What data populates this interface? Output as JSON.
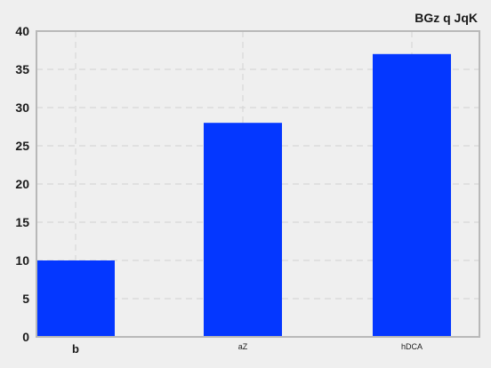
{
  "chart_data": {
    "type": "bar",
    "title": "BGz q JqK",
    "xlabel": "",
    "ylabel": "",
    "categories": [
      "b",
      "aZ",
      "hDCA"
    ],
    "values": [
      10,
      28,
      37
    ],
    "ylim": [
      0,
      40
    ],
    "yticks": [
      0,
      5,
      10,
      15,
      20,
      25,
      30,
      35,
      40
    ],
    "grid": true,
    "bar_color": "#0437ff",
    "background_color": "#efefef",
    "axis_color": "#b8b8b8",
    "grid_color": "#d8d8d8"
  }
}
